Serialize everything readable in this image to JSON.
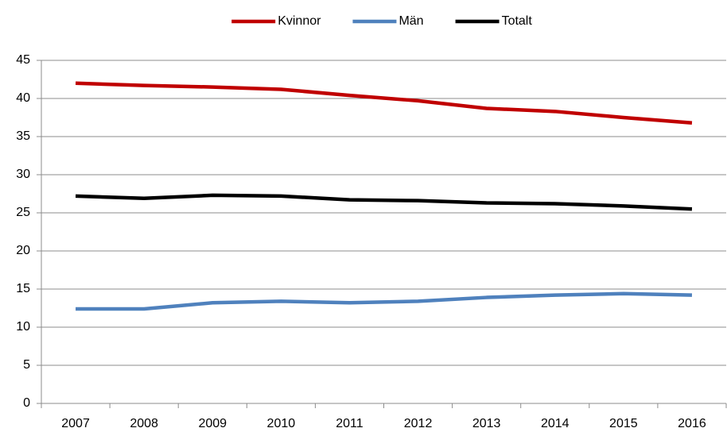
{
  "chart_data": {
    "type": "line",
    "categories": [
      "2007",
      "2008",
      "2009",
      "2010",
      "2011",
      "2012",
      "2013",
      "2014",
      "2015",
      "2016"
    ],
    "series": [
      {
        "name": "Kvinnor",
        "color": "#c00000",
        "values": [
          42.0,
          41.7,
          41.5,
          41.2,
          40.4,
          39.7,
          38.7,
          38.3,
          37.5,
          36.8
        ]
      },
      {
        "name": "Män",
        "color": "#4f81bd",
        "values": [
          12.4,
          12.4,
          13.2,
          13.4,
          13.2,
          13.4,
          13.9,
          14.2,
          14.4,
          14.2
        ]
      },
      {
        "name": "Totalt",
        "color": "#000000",
        "values": [
          27.2,
          26.9,
          27.3,
          27.2,
          26.7,
          26.6,
          26.3,
          26.2,
          25.9,
          25.5
        ]
      }
    ],
    "ylim": [
      0,
      45
    ],
    "yticks": [
      0,
      5,
      10,
      15,
      20,
      25,
      30,
      35,
      40,
      45
    ],
    "grid": true,
    "legend": "top"
  }
}
